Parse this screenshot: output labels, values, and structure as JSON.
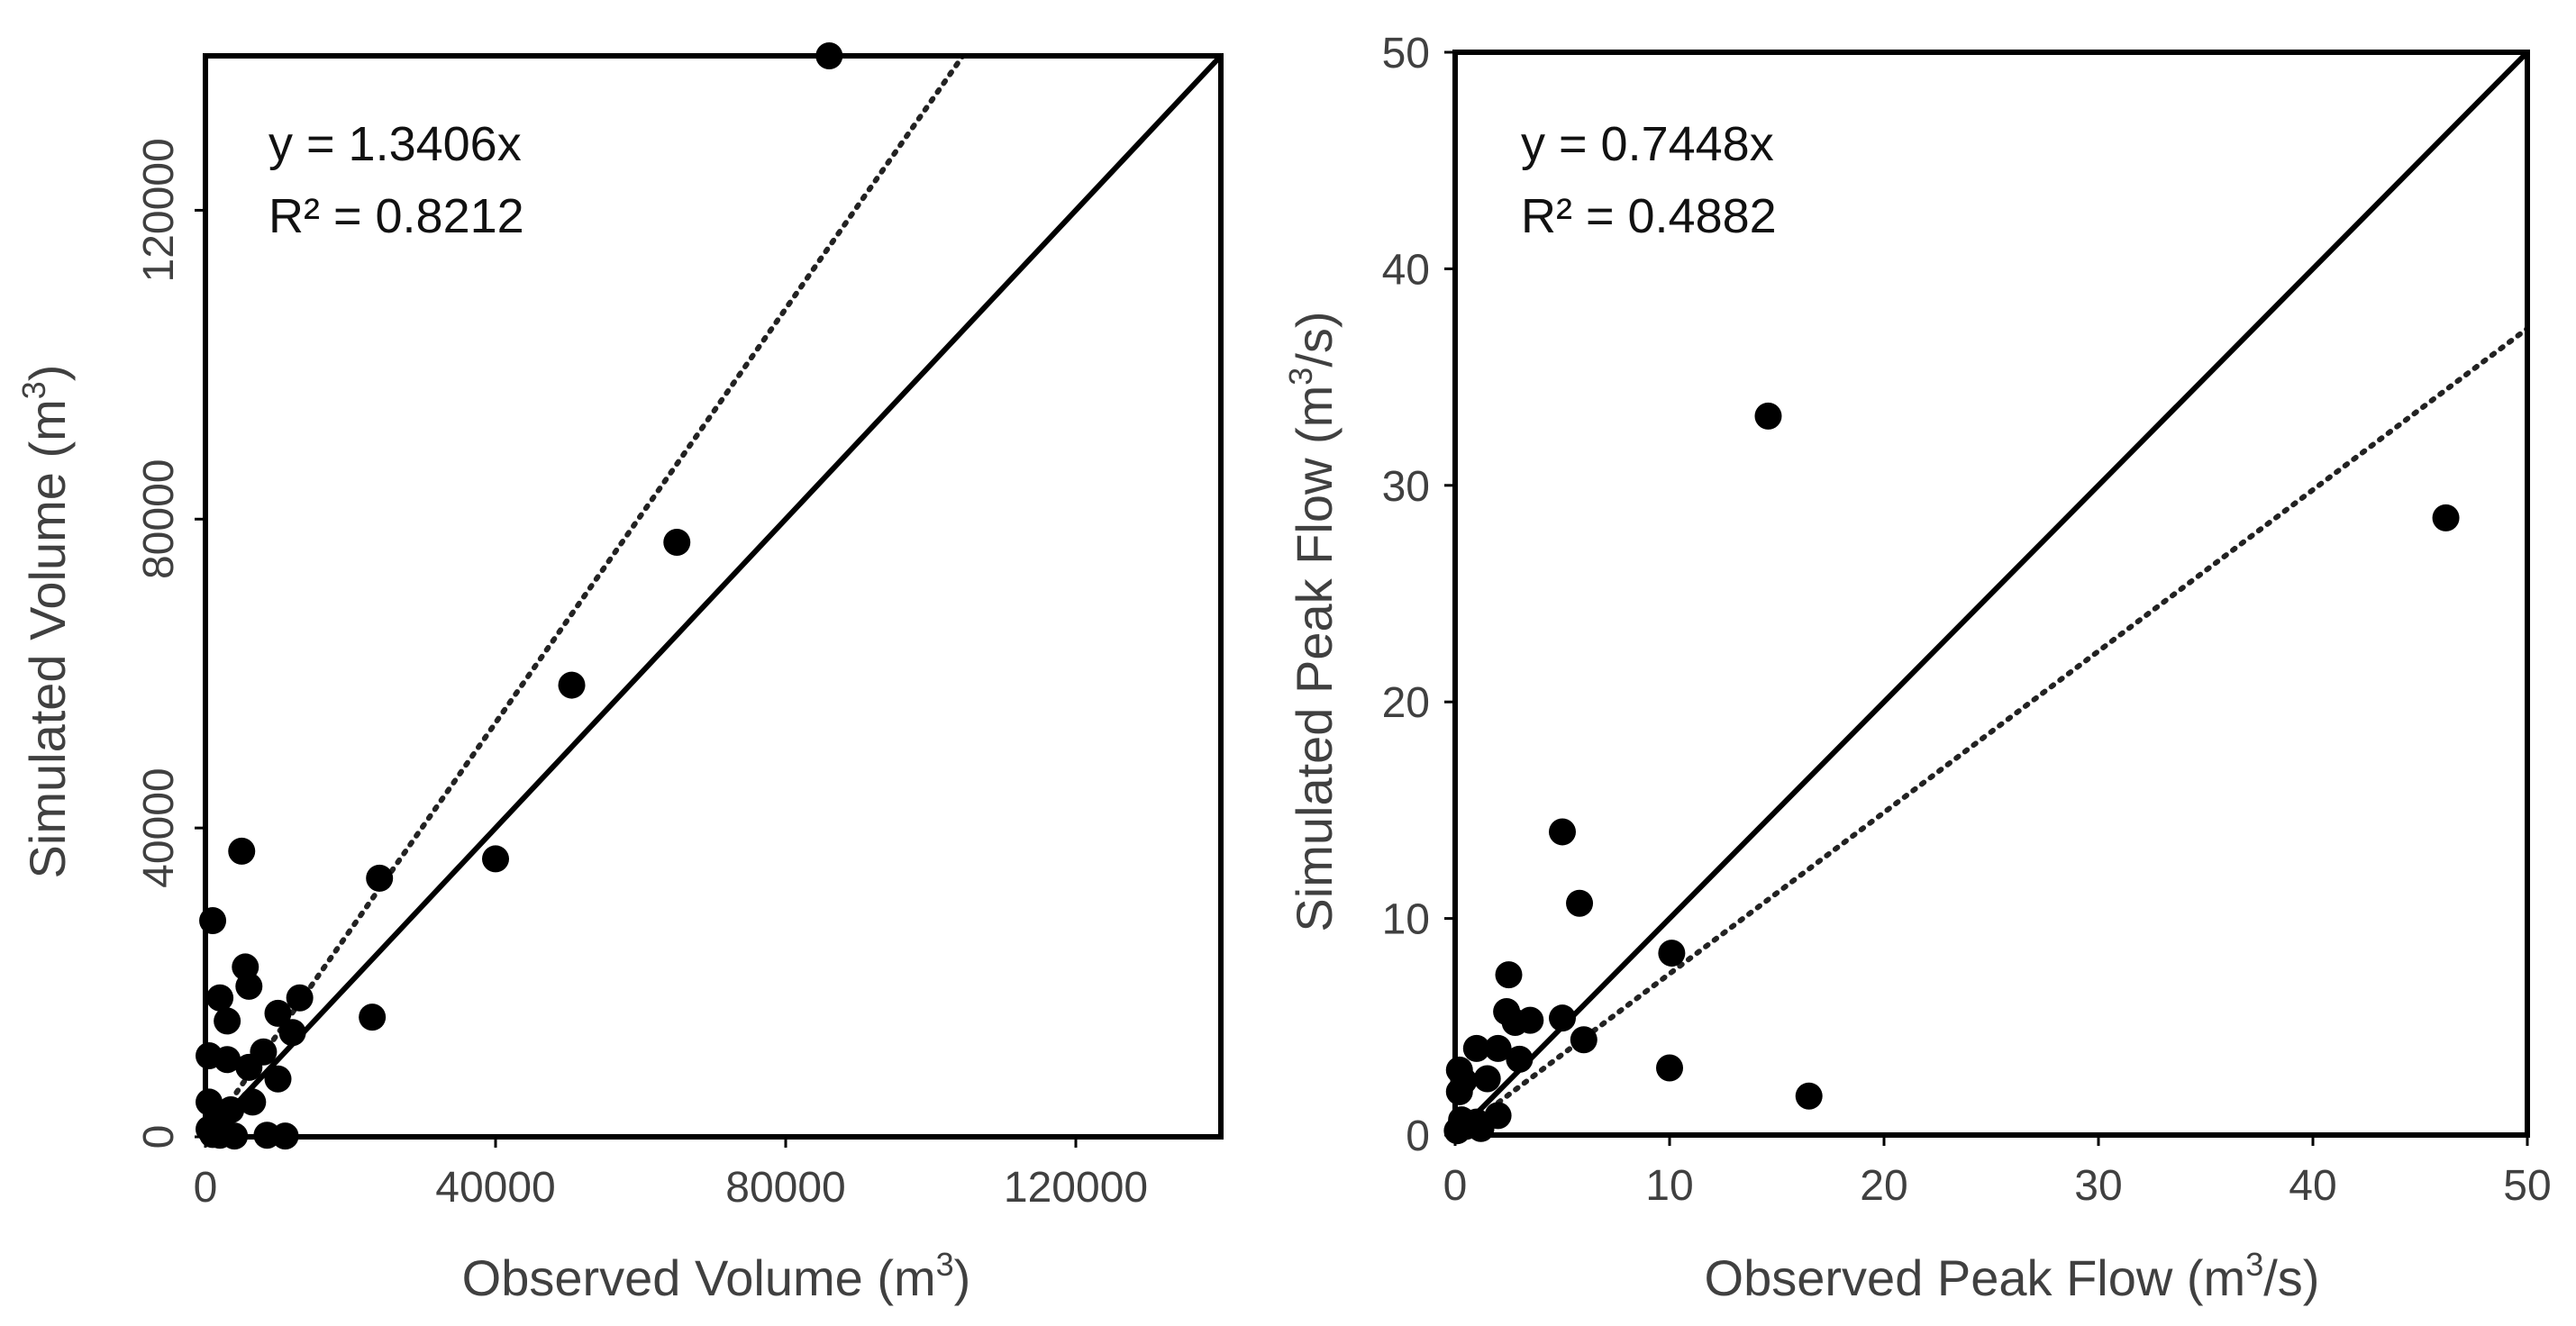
{
  "chart_data": [
    {
      "type": "scatter",
      "title": "",
      "xlabel": "Observed Volume (m3)",
      "xlabel_text": "Observed Volume (m",
      "xlabel_sup": "3",
      "xlabel_close": ")",
      "ylabel": "Simulated Volume (m3)",
      "ylabel_text": "Simulated Volume (m",
      "ylabel_sup": "3",
      "ylabel_close": ")",
      "xlim": [
        0,
        140000
      ],
      "ylim": [
        0,
        140000
      ],
      "xticks": [
        0,
        40000,
        80000,
        120000
      ],
      "yticks": [
        0,
        40000,
        80000,
        120000
      ],
      "xtick_labels": [
        "0",
        "40000",
        "80000",
        "120000"
      ],
      "ytick_labels": [
        "0",
        "40000",
        "80000",
        "120000"
      ],
      "ytick_rotation": "vertical",
      "equation": "y = 1.3406x",
      "r_squared": "R² = 0.8212",
      "fit_slope": 1.3406,
      "one_to_one": true,
      "grid": false,
      "points": {
        "x": [
          86000,
          65000,
          50500,
          40000,
          24000,
          23000,
          5000,
          1000,
          5500,
          6000,
          2000,
          13000,
          10000,
          3000,
          12000,
          8000,
          500,
          3000,
          6000,
          10000,
          6500,
          500,
          3500,
          1500,
          2500,
          500,
          1000,
          2000,
          8500,
          11000,
          4000
        ],
        "y": [
          140000,
          77000,
          58500,
          36000,
          33500,
          15500,
          37000,
          28000,
          22000,
          19500,
          18000,
          18000,
          16000,
          15000,
          13500,
          11000,
          10500,
          10000,
          9000,
          7500,
          4500,
          4500,
          3500,
          1500,
          500,
          1000,
          300,
          200,
          200,
          100,
          100
        ]
      }
    },
    {
      "type": "scatter",
      "title": "",
      "xlabel": "Observed Peak Flow (m3/s)",
      "xlabel_text": "Observed Peak Flow (m",
      "xlabel_sup": "3",
      "xlabel_close": "/s)",
      "ylabel": "Simulated Peak Flow (m3/s)",
      "ylabel_text": "Simulated Peak Flow (m",
      "ylabel_sup": "3",
      "ylabel_close": "/s)",
      "xlim": [
        0,
        50
      ],
      "ylim": [
        0,
        50
      ],
      "xticks": [
        0,
        10,
        20,
        30,
        40,
        50
      ],
      "yticks": [
        0,
        10,
        20,
        30,
        40,
        50
      ],
      "xtick_labels": [
        "0",
        "10",
        "20",
        "30",
        "40",
        "50"
      ],
      "ytick_labels": [
        "0",
        "10",
        "20",
        "30",
        "40",
        "50"
      ],
      "ytick_rotation": "horizontal",
      "equation": "y = 0.7448x",
      "r_squared": "R² = 0.4882",
      "fit_slope": 0.7448,
      "one_to_one": true,
      "grid": false,
      "points": {
        "x": [
          46.2,
          14.6,
          5.0,
          5.8,
          10.1,
          10.0,
          16.5,
          2.5,
          2.4,
          2.8,
          3.5,
          5.0,
          6.0,
          1.0,
          2.0,
          3.0,
          1.5,
          0.2,
          0.4,
          0.2,
          2.0,
          1.0,
          0.5,
          1.2,
          0.3,
          0.1
        ],
        "y": [
          28.5,
          33.2,
          14.0,
          10.7,
          8.4,
          3.1,
          1.8,
          7.4,
          5.7,
          5.2,
          5.3,
          5.4,
          4.4,
          4.0,
          4.0,
          3.5,
          2.6,
          3.0,
          2.5,
          2.0,
          0.9,
          0.6,
          0.4,
          0.3,
          0.7,
          0.2
        ]
      }
    }
  ]
}
